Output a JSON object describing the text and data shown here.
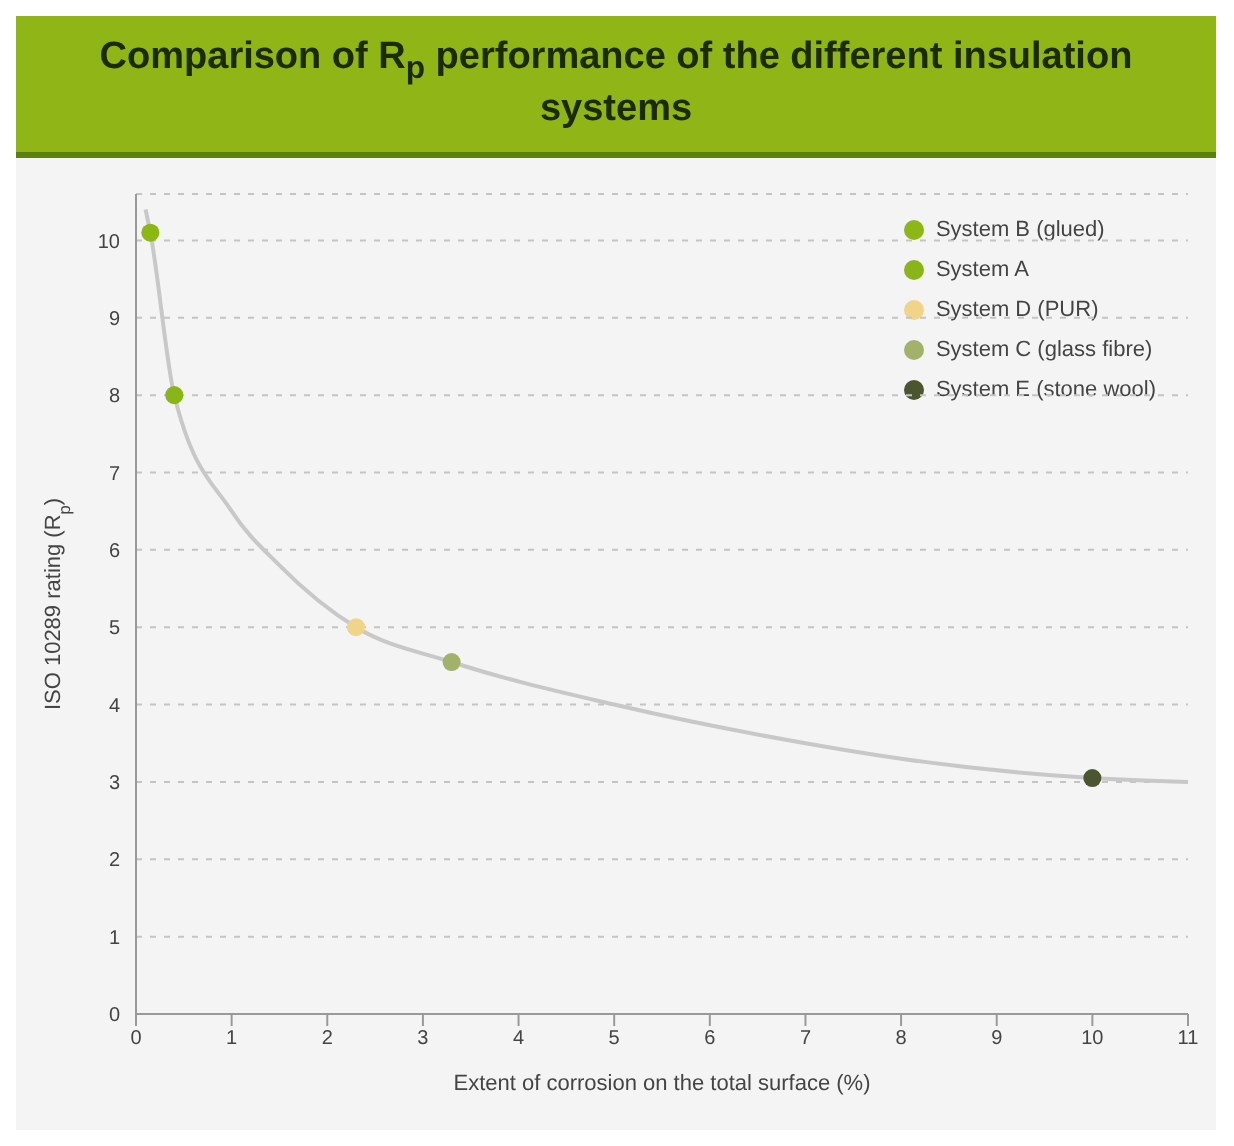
{
  "chart_data": {
    "type": "scatter",
    "title": "Comparison of R$_{p}$ performance of the different insulation systems",
    "xlabel": "Extent of corrosion on the total surface (%)",
    "ylabel": "ISO 10289 rating (R$_{p}$)",
    "xlim": [
      0,
      11
    ],
    "xticks": [
      0,
      1,
      2,
      3,
      4,
      5,
      6,
      7,
      8,
      9,
      10,
      11
    ],
    "ylim": [
      0,
      10.6
    ],
    "yticks": [
      0,
      1,
      2,
      3,
      4,
      5,
      6,
      7,
      8,
      9,
      10
    ],
    "grid": "y",
    "legend": "top right",
    "series": [
      {
        "type": "line",
        "color": "#c8c8c8",
        "x": [
          0.1,
          0.15,
          0.4,
          1,
          1.5,
          2.3,
          3.3,
          5,
          7,
          8,
          10,
          11
        ],
        "values": [
          10.4,
          10.1,
          8,
          6.5,
          5.8,
          5,
          4.55,
          4,
          3.5,
          3.3,
          3.05,
          3
        ]
      },
      {
        "name": "System B (glued)",
        "color": "#8cb714",
        "x": [
          0.15
        ],
        "values": [
          10.1
        ]
      },
      {
        "name": "System A",
        "color": "#8ab518",
        "x": [
          0.4
        ],
        "values": [
          8
        ]
      },
      {
        "name": "System D (PUR)",
        "color": "#f0d488",
        "x": [
          2.3
        ],
        "values": [
          5
        ]
      },
      {
        "name": "System C (glass fibre)",
        "color": "#a2b26a",
        "x": [
          3.3
        ],
        "values": [
          4.55
        ]
      },
      {
        "name": "System E (stone wool)",
        "color": "#4b5631",
        "x": [
          10
        ],
        "values": [
          3.05
        ]
      }
    ]
  }
}
